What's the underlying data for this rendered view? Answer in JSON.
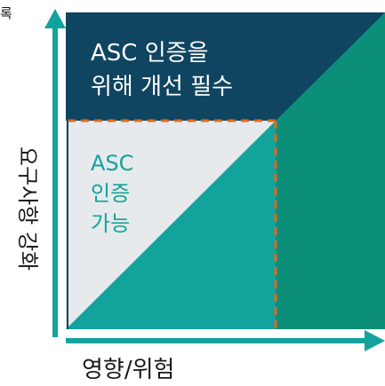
{
  "corner_text": "록",
  "top_label_line1": "ASC 인증을",
  "top_label_line2": "위해 개선 필수",
  "middle_label_line1": "ASC",
  "middle_label_line2": "인증",
  "middle_label_line3": "가능",
  "x_axis_label": "영향/위험",
  "y_axis_label": "요구사항 강화",
  "colors": {
    "dark_navy": "#0f4560",
    "teal_dark": "#0b8f79",
    "teal_mid": "#13a39d",
    "light_gray": "#e6eaec",
    "axis_teal": "#13a39d",
    "dash_orange": "#dd6a1e",
    "text_dark": "#1a1a1a",
    "text_teal": "#13a39d",
    "white": "#ffffff"
  }
}
